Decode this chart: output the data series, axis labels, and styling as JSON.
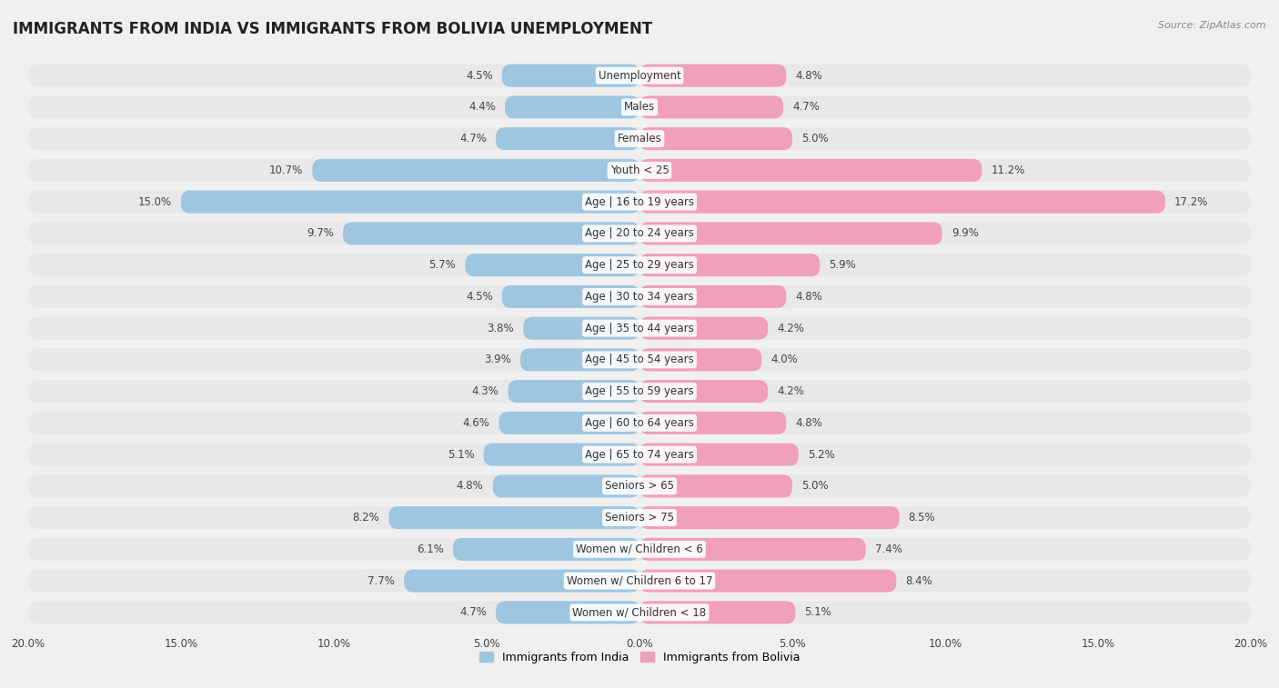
{
  "title": "IMMIGRANTS FROM INDIA VS IMMIGRANTS FROM BOLIVIA UNEMPLOYMENT",
  "source": "Source: ZipAtlas.com",
  "categories": [
    "Unemployment",
    "Males",
    "Females",
    "Youth < 25",
    "Age | 16 to 19 years",
    "Age | 20 to 24 years",
    "Age | 25 to 29 years",
    "Age | 30 to 34 years",
    "Age | 35 to 44 years",
    "Age | 45 to 54 years",
    "Age | 55 to 59 years",
    "Age | 60 to 64 years",
    "Age | 65 to 74 years",
    "Seniors > 65",
    "Seniors > 75",
    "Women w/ Children < 6",
    "Women w/ Children 6 to 17",
    "Women w/ Children < 18"
  ],
  "india_values": [
    4.5,
    4.4,
    4.7,
    10.7,
    15.0,
    9.7,
    5.7,
    4.5,
    3.8,
    3.9,
    4.3,
    4.6,
    5.1,
    4.8,
    8.2,
    6.1,
    7.7,
    4.7
  ],
  "bolivia_values": [
    4.8,
    4.7,
    5.0,
    11.2,
    17.2,
    9.9,
    5.9,
    4.8,
    4.2,
    4.0,
    4.2,
    4.8,
    5.2,
    5.0,
    8.5,
    7.4,
    8.4,
    5.1
  ],
  "india_color": "#9ec6e0",
  "bolivia_color": "#f0a0b8",
  "india_label": "Immigrants from India",
  "bolivia_label": "Immigrants from Bolivia",
  "xlim": 20.0,
  "row_bg_color": "#e8e8e8",
  "bar_bg_color": "#f5f5f5",
  "page_bg_color": "#f0f0f0",
  "title_fontsize": 12,
  "label_fontsize": 8.5,
  "value_fontsize": 8.5,
  "tick_fontsize": 8.5
}
